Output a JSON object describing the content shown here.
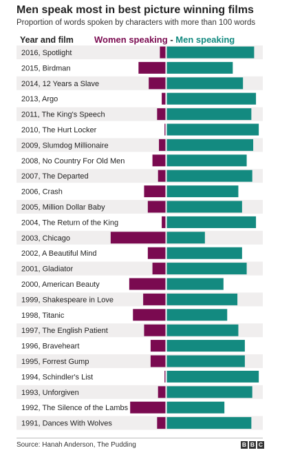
{
  "title": "Men speak most in best picture winning films",
  "subtitle": "Proportion of words spoken by characters with more than 100 words",
  "column_header": "Year and film",
  "legend": {
    "women": "Women speaking",
    "separator": "-",
    "men": "Men speaking"
  },
  "colors": {
    "women": "#7a0a50",
    "men": "#138a80",
    "stripe": "#f0eeee"
  },
  "source": "Source: Hanah Anderson, The Pudding",
  "logo": [
    "B",
    "B",
    "C"
  ],
  "chart_data": {
    "type": "bar",
    "orientation": "diverging-horizontal",
    "value_unit": "percent of words",
    "categories": [
      "2016, Spotlight",
      "2015, Birdman",
      "2014, 12 Years a Slave",
      "2013, Argo",
      "2011, The King's Speech",
      "2010, The Hurt Locker",
      "2009, Slumdog Millionaire",
      "2008, No Country For Old Men",
      "2007, The Departed",
      "2006, Crash",
      "2005, Million Dollar Baby",
      "2004, The Return of the King",
      "2003, Chicago",
      "2002, A Beautiful Mind",
      "2001, Gladiator",
      "2000, American Beauty",
      "1999, Shakespeare in Love",
      "1998, Titanic",
      "1997, The English Patient",
      "1996, Braveheart",
      "1995, Forrest Gump",
      "1994, Schindler's List",
      "1993, Unforgiven",
      "1992, The Silence of the Lambs",
      "1991, Dances With Wolves"
    ],
    "series": [
      {
        "name": "Women speaking",
        "values": [
          6,
          29,
          18,
          4,
          9,
          1,
          7,
          14,
          8,
          23,
          19,
          4,
          59,
          19,
          14,
          39,
          24,
          35,
          23,
          16,
          16,
          1,
          8,
          38,
          9
        ]
      },
      {
        "name": "Men speaking",
        "values": [
          94,
          71,
          82,
          96,
          91,
          99,
          93,
          86,
          92,
          77,
          81,
          96,
          41,
          81,
          86,
          61,
          76,
          65,
          77,
          84,
          84,
          99,
          92,
          62,
          91
        ]
      }
    ],
    "xlim": [
      0,
      100
    ],
    "grid": false
  }
}
